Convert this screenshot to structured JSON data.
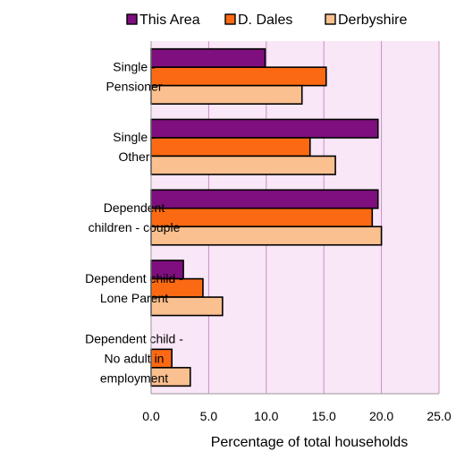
{
  "chart_data": {
    "type": "bar",
    "orientation": "horizontal",
    "title": "",
    "xlabel": "Percentage of total households",
    "ylabel": "",
    "xlim": [
      0,
      25
    ],
    "xticks": [
      "0.0",
      "5.0",
      "10.0",
      "15.0",
      "20.0",
      "25.0"
    ],
    "grid": true,
    "legend_position": "top",
    "categories": [
      [
        "Single -",
        "Pensioner"
      ],
      [
        "Single -",
        "Other"
      ],
      [
        "Dependent",
        "children - couple"
      ],
      [
        "Dependent child -",
        "Lone Parent"
      ],
      [
        "Dependent child -",
        "No adult in",
        "employment"
      ]
    ],
    "series": [
      {
        "name": "This Area",
        "color": "#7f0f7e",
        "values": [
          9.9,
          19.7,
          19.7,
          2.8,
          0.0
        ]
      },
      {
        "name": "D. Dales",
        "color": "#fb6a12",
        "values": [
          15.2,
          13.8,
          19.2,
          4.5,
          1.8
        ]
      },
      {
        "name": "Derbyshire",
        "color": "#fbc08f",
        "values": [
          13.1,
          16.0,
          20.0,
          6.2,
          3.4
        ]
      }
    ],
    "plot_background": "#f9e6f7",
    "gridline_color": "#c78fc3"
  }
}
